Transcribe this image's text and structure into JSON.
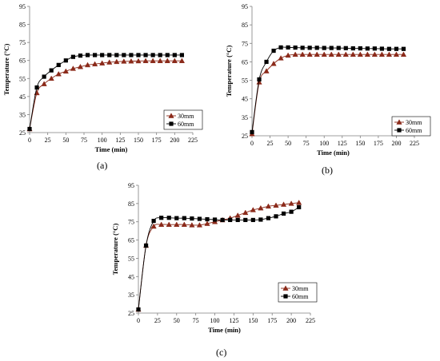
{
  "chart_data": [
    {
      "type": "line",
      "panel_label": "(a)",
      "xlabel": "Time (min)",
      "ylabel": "Temperature (°C)",
      "xlim": [
        0,
        225
      ],
      "ylim": [
        25,
        95
      ],
      "xticks": [
        "0",
        "25",
        "50",
        "75",
        "100",
        "125",
        "150",
        "175",
        "200",
        "225"
      ],
      "yticks": [
        "25",
        "35",
        "45",
        "55",
        "65",
        "75",
        "85",
        "95"
      ],
      "legend_position": "bottom-right",
      "series": [
        {
          "name": "30mm",
          "marker": "triangle",
          "color": "#8b2a1a",
          "x": [
            0,
            10,
            20,
            30,
            40,
            50,
            60,
            70,
            80,
            90,
            100,
            110,
            120,
            130,
            140,
            150,
            160,
            170,
            180,
            190,
            200,
            210
          ],
          "y": [
            27,
            47,
            52,
            55,
            57.5,
            59,
            60.5,
            61.5,
            62.5,
            63,
            63.5,
            64,
            64.3,
            64.5,
            64.6,
            64.7,
            64.8,
            64.8,
            64.8,
            64.8,
            64.8,
            64.8
          ]
        },
        {
          "name": "60mm",
          "marker": "square",
          "color": "#000000",
          "x": [
            0,
            10,
            20,
            30,
            40,
            50,
            60,
            70,
            80,
            90,
            100,
            110,
            120,
            130,
            140,
            150,
            160,
            170,
            180,
            190,
            200,
            210
          ],
          "y": [
            27,
            50,
            56,
            59.5,
            62.5,
            65,
            67,
            67.7,
            68,
            68,
            68,
            68,
            68,
            68,
            68,
            68,
            68,
            68,
            68,
            68,
            68,
            68
          ]
        }
      ]
    },
    {
      "type": "line",
      "panel_label": "(b)",
      "xlabel": "Time (min)",
      "ylabel": "Temperature (°C)",
      "xlim": [
        0,
        225
      ],
      "ylim": [
        25,
        95
      ],
      "xticks": [
        "0",
        "25",
        "50",
        "75",
        "100",
        "125",
        "150",
        "175",
        "200",
        "225"
      ],
      "yticks": [
        "25",
        "35",
        "45",
        "55",
        "65",
        "75",
        "85",
        "95"
      ],
      "legend_position": "bottom-right",
      "series": [
        {
          "name": "30mm",
          "marker": "triangle",
          "color": "#8b2a1a",
          "x": [
            0,
            10,
            20,
            30,
            40,
            50,
            60,
            70,
            80,
            90,
            100,
            110,
            120,
            130,
            140,
            150,
            160,
            170,
            180,
            190,
            200,
            210
          ],
          "y": [
            26,
            54,
            60,
            64,
            67,
            68.5,
            69,
            69,
            69,
            69,
            69,
            69,
            69,
            69,
            69,
            69,
            69,
            69,
            69,
            69,
            69,
            69
          ]
        },
        {
          "name": "60mm",
          "marker": "square",
          "color": "#000000",
          "x": [
            0,
            10,
            20,
            30,
            40,
            50,
            60,
            70,
            80,
            90,
            100,
            110,
            120,
            130,
            140,
            150,
            160,
            170,
            180,
            190,
            200,
            210
          ],
          "y": [
            27,
            55.5,
            65,
            71,
            72.8,
            72.8,
            72.7,
            72.6,
            72.6,
            72.6,
            72.5,
            72.5,
            72.5,
            72.4,
            72.3,
            72.3,
            72.2,
            72.2,
            72.1,
            72,
            72,
            72
          ]
        }
      ]
    },
    {
      "type": "line",
      "panel_label": "(c)",
      "xlabel": "Time (min)",
      "ylabel": "Temperature (°C)",
      "xlim": [
        0,
        225
      ],
      "ylim": [
        25,
        95
      ],
      "xticks": [
        "0",
        "25",
        "50",
        "75",
        "100",
        "125",
        "150",
        "175",
        "200",
        "225"
      ],
      "yticks": [
        "25",
        "35",
        "45",
        "55",
        "65",
        "75",
        "85",
        "95"
      ],
      "legend_position": "bottom-right",
      "series": [
        {
          "name": "30mm",
          "marker": "triangle",
          "color": "#8b2a1a",
          "x": [
            0,
            10,
            20,
            30,
            40,
            50,
            60,
            70,
            80,
            90,
            100,
            110,
            120,
            130,
            140,
            150,
            160,
            170,
            180,
            190,
            200,
            210
          ],
          "y": [
            27,
            62,
            72.5,
            73.5,
            73.5,
            73.5,
            73.5,
            73.2,
            73.2,
            74,
            75,
            76,
            77,
            78.5,
            80,
            81.5,
            82.5,
            83.5,
            84,
            84.5,
            85,
            85.5
          ]
        },
        {
          "name": "60mm",
          "marker": "square",
          "color": "#000000",
          "x": [
            0,
            10,
            20,
            30,
            40,
            50,
            60,
            70,
            80,
            90,
            100,
            110,
            120,
            130,
            140,
            150,
            160,
            170,
            180,
            190,
            200,
            210
          ],
          "y": [
            27,
            62,
            75.5,
            77.2,
            77.2,
            77,
            77,
            76.8,
            76.6,
            76.4,
            76.2,
            76,
            76,
            76,
            76,
            76,
            76.2,
            77,
            78,
            79.5,
            80.5,
            83
          ]
        }
      ]
    }
  ]
}
